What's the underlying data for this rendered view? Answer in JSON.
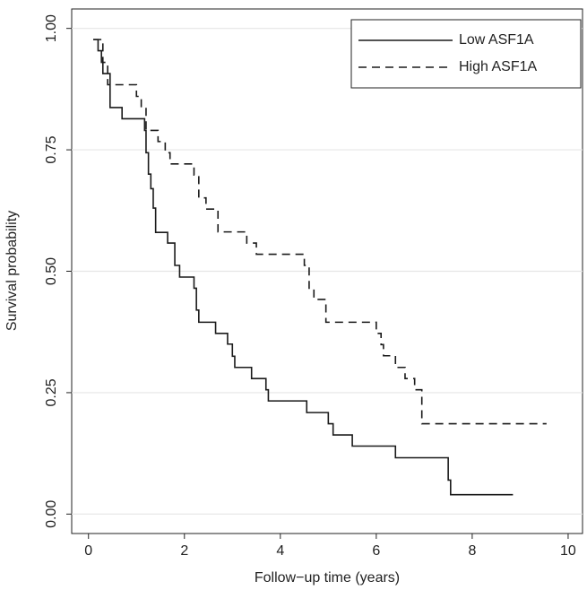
{
  "chart_data": {
    "type": "step",
    "xlabel": "Follow−up time (years)",
    "ylabel": "Survival probability",
    "xlim": [
      -0.35,
      10.3
    ],
    "ylim": [
      -0.04,
      1.04
    ],
    "xticks": [
      0,
      2,
      4,
      6,
      8,
      10
    ],
    "yticks": [
      {
        "value": 0,
        "label": "0.00"
      },
      {
        "value": 0.25,
        "label": "0.25"
      },
      {
        "value": 0.5,
        "label": "0.50"
      },
      {
        "value": 0.75,
        "label": "0.75"
      },
      {
        "value": 1,
        "label": "1.00"
      }
    ],
    "grid": true,
    "legend": "upper right",
    "series": [
      {
        "name": "Low ASF1A",
        "color": "#1a1a1a",
        "dash": false,
        "x": [
          0.1,
          0.2,
          0.27,
          0.3,
          0.45,
          0.7,
          1.17,
          1.2,
          1.25,
          1.3,
          1.35,
          1.4,
          1.65,
          1.8,
          1.9,
          2.2,
          2.25,
          2.3,
          2.65,
          2.9,
          3.0,
          3.05,
          3.4,
          3.7,
          3.75,
          4.55,
          5.0,
          5.1,
          5.5,
          6.4,
          7.5,
          7.55,
          8.85
        ],
        "values": [
          0.977,
          0.954,
          0.93,
          0.907,
          0.837,
          0.814,
          0.79,
          0.744,
          0.7,
          0.67,
          0.63,
          0.58,
          0.558,
          0.512,
          0.488,
          0.465,
          0.42,
          0.395,
          0.372,
          0.35,
          0.325,
          0.302,
          0.279,
          0.256,
          0.233,
          0.209,
          0.186,
          0.163,
          0.14,
          0.116,
          0.07,
          0.04,
          0.04
        ]
      },
      {
        "name": "High ASF1A",
        "color": "#1a1a1a",
        "dash": true,
        "x": [
          0.1,
          0.3,
          0.4,
          1.0,
          1.1,
          1.2,
          1.45,
          1.6,
          1.7,
          2.2,
          2.3,
          2.45,
          2.7,
          3.3,
          3.5,
          4.5,
          4.6,
          4.7,
          4.95,
          6.0,
          6.1,
          6.15,
          6.4,
          6.6,
          6.8,
          6.95,
          9.55
        ],
        "values": [
          0.977,
          0.93,
          0.884,
          0.86,
          0.837,
          0.79,
          0.767,
          0.744,
          0.721,
          0.698,
          0.651,
          0.628,
          0.581,
          0.558,
          0.535,
          0.512,
          0.465,
          0.442,
          0.395,
          0.372,
          0.349,
          0.326,
          0.302,
          0.279,
          0.256,
          0.186,
          0.186
        ]
      }
    ]
  }
}
